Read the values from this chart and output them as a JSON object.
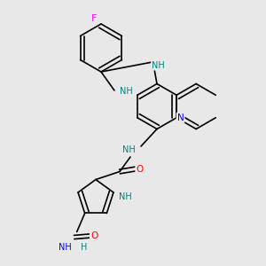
{
  "bg_color": "#e8e8e8",
  "bond_color": "#000000",
  "bond_width": 1.2,
  "atom_colors": {
    "N": "#0000ff",
    "O": "#ff0000",
    "F": "#ff00ff",
    "NH": "#008080",
    "C": "#000000"
  },
  "font_size": 7.5
}
